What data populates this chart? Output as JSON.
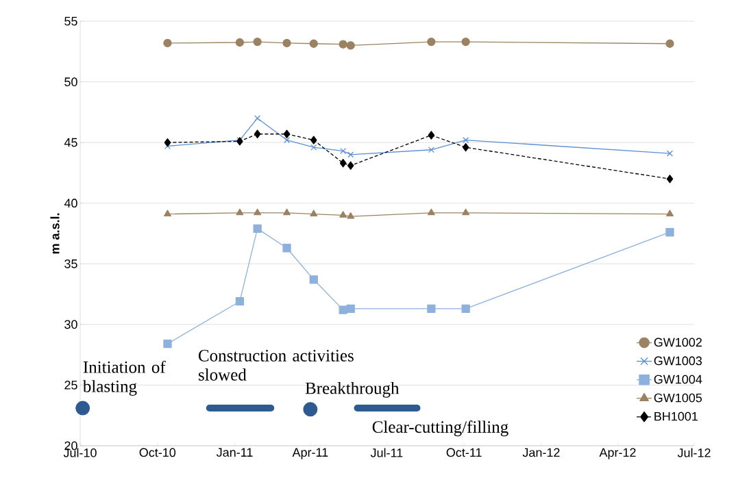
{
  "chart_data": {
    "type": "line",
    "ylabel": "m a.s.l.",
    "x": [
      "2010-10-13",
      "2011-01-07",
      "2011-01-28",
      "2011-03-04",
      "2011-04-05",
      "2011-05-10",
      "2011-05-19",
      "2011-08-23",
      "2011-10-03",
      "2012-06-02"
    ],
    "series": [
      {
        "name": "GW1002",
        "color": "#9b8262",
        "marker": "circle",
        "values": [
          53.2,
          53.25,
          53.3,
          53.2,
          53.15,
          53.1,
          53.0,
          53.3,
          53.3,
          53.15
        ]
      },
      {
        "name": "GW1003",
        "color": "#5b8fd6",
        "marker": "cross",
        "values": [
          44.7,
          45.2,
          47.0,
          45.2,
          44.6,
          44.3,
          44.0,
          44.4,
          45.2,
          44.1
        ]
      },
      {
        "name": "GW1004",
        "color": "#8eb0dc",
        "marker": "square",
        "values": [
          28.4,
          31.9,
          37.9,
          36.3,
          33.7,
          31.2,
          31.3,
          31.3,
          31.3,
          37.6
        ]
      },
      {
        "name": "GW1005",
        "color": "#9b8262",
        "marker": "triangle",
        "values": [
          39.1,
          39.2,
          39.2,
          39.2,
          39.1,
          39.0,
          38.9,
          39.2,
          39.2,
          39.1
        ]
      },
      {
        "name": "BH1001",
        "color": "#000000",
        "marker": "diamond",
        "line_style": "dashed",
        "values": [
          45.0,
          45.1,
          45.7,
          45.7,
          45.2,
          43.3,
          43.1,
          45.6,
          44.6,
          42.0
        ]
      },
      {
        "color": "#2e5a92",
        "marker": "circle",
        "x": [
          "2010-07-04"
        ],
        "values": [
          23.1
        ]
      },
      {
        "color": "#2e5a92",
        "x": [
          "2010-12-02",
          "2011-02-13"
        ],
        "values": [
          23.1,
          23.1
        ]
      },
      {
        "color": "#2e5a92",
        "marker": "circle",
        "x": [
          "2011-04-01"
        ],
        "values": [
          23.0
        ]
      },
      {
        "color": "#2e5a92",
        "x": [
          "2011-05-27",
          "2011-08-06"
        ],
        "values": [
          23.1,
          23.1
        ]
      }
    ],
    "annotations": [
      {
        "text": "Initiation of blasting",
        "x": "2010-07-04",
        "y": 23.1
      },
      {
        "text": "Construction activities slowed",
        "x": "2010-12-02",
        "y": 23.1
      },
      {
        "text": "Breakthrough",
        "x": "2011-04-01",
        "y": 23.0
      },
      {
        "text": "Clear-cutting/filling",
        "x": "2011-05-27",
        "y": 23.1
      }
    ],
    "xlim": [
      "2010-07-01",
      "2012-07-01"
    ],
    "xticks": [
      {
        "value": "2010-07-01",
        "label": "Jul-10"
      },
      {
        "value": "2010-10-01",
        "label": "Oct-10"
      },
      {
        "value": "2011-01-01",
        "label": "Jan-11"
      },
      {
        "value": "2011-04-01",
        "label": "Apr-11"
      },
      {
        "value": "2011-07-01",
        "label": "Jul-11"
      },
      {
        "value": "2011-10-01",
        "label": "Oct-11"
      },
      {
        "value": "2012-01-01",
        "label": "Jan-12"
      },
      {
        "value": "2012-04-01",
        "label": "Apr-12"
      },
      {
        "value": "2012-07-01",
        "label": "Jul-12"
      }
    ],
    "ylim": [
      20,
      55
    ],
    "yticks": [
      20,
      25,
      30,
      35,
      40,
      45,
      50,
      55
    ],
    "grid": "y",
    "legend": "right"
  }
}
